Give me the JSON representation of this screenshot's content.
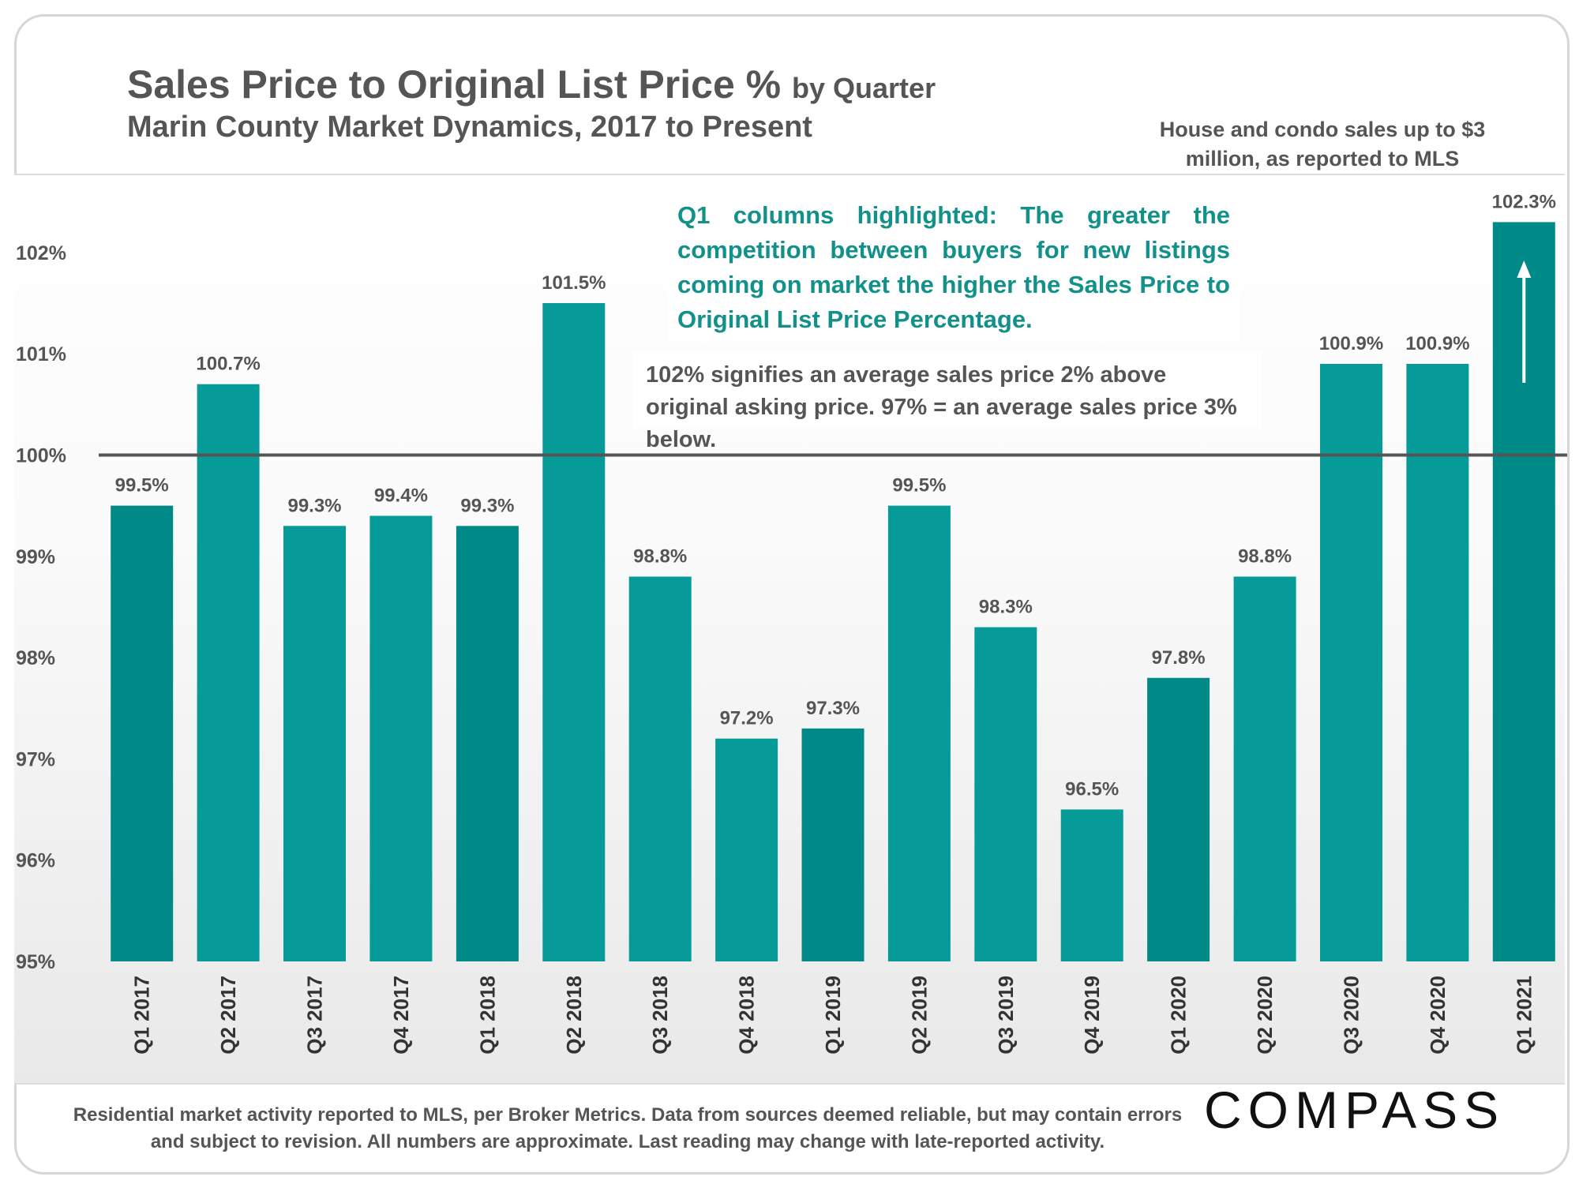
{
  "header": {
    "title": "Sales Price to Original List Price %",
    "title_suffix": "by Quarter",
    "subtitle": "Marin County Market Dynamics, 2017 to Present",
    "scope_note": "House and condo sales up to $3 million, as reported to MLS"
  },
  "callouts": {
    "highlight": "Q1 columns highlighted:  The greater the competition between buyers for new listings coming on market the higher the Sales Price to Original List Price Percentage.",
    "explanation": "102% signifies an average sales price 2% above original asking price. 97% = an average sales price 3% below."
  },
  "footer": {
    "disclaimer": "Residential market activity reported to MLS, per Broker Metrics. Data from sources deemed reliable, but may contain errors and subject to revision. All numbers are approximate. Last reading may change with late-reported activity.",
    "logo": "COMPASS"
  },
  "colors": {
    "q1_bar": "#008a87",
    "other_bar": "#069b98",
    "reference_line": "#555555",
    "label_text": "#555555",
    "callout_text": "#11918a"
  },
  "chart_data": {
    "type": "bar",
    "categories": [
      "Q1 2017",
      "Q2 2017",
      "Q3 2017",
      "Q4 2017",
      "Q1 2018",
      "Q2 2018",
      "Q3 2018",
      "Q4 2018",
      "Q1 2019",
      "Q2 2019",
      "Q3 2019",
      "Q4 2019",
      "Q1 2020",
      "Q2 2020",
      "Q3 2020",
      "Q4 2020",
      "Q1 2021"
    ],
    "values": [
      99.5,
      100.7,
      99.3,
      99.4,
      99.3,
      101.5,
      98.8,
      97.2,
      97.3,
      99.5,
      98.3,
      96.5,
      97.8,
      98.8,
      100.9,
      100.9,
      102.3
    ],
    "data_labels": [
      "99.5%",
      "100.7%",
      "99.3%",
      "99.4%",
      "99.3%",
      "101.5%",
      "98.8%",
      "97.2%",
      "97.3%",
      "99.5%",
      "98.3%",
      "96.5%",
      "97.8%",
      "98.8%",
      "100.9%",
      "100.9%",
      "102.3%"
    ],
    "highlighted": [
      "Q1 2017",
      "Q1 2018",
      "Q1 2019",
      "Q1 2020",
      "Q1 2021"
    ],
    "ylim": [
      95,
      102.5
    ],
    "yticks": [
      95,
      96,
      97,
      98,
      99,
      100,
      101,
      102
    ],
    "ytick_labels": [
      "95%",
      "96%",
      "97%",
      "98%",
      "99%",
      "100%",
      "101%",
      "102%"
    ],
    "reference_line": 100,
    "grid": false,
    "legend": "none",
    "annotation": "upward arrow on Q1 2021 bar"
  }
}
